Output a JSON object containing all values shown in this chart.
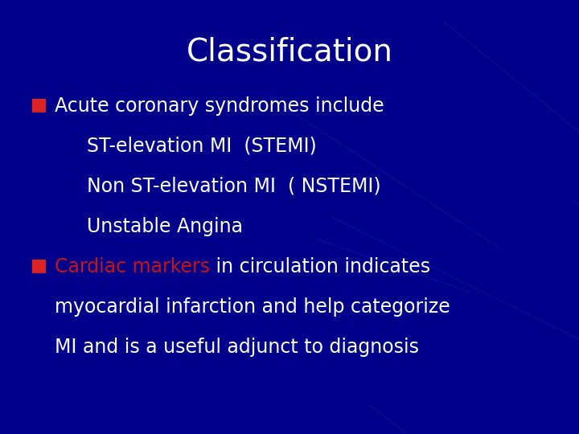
{
  "title": "Classification",
  "title_color": "#ffffff",
  "title_fontsize": 28,
  "background_color": "#00008B",
  "bullet_color": "#dd2222",
  "text_color": "#ffffff",
  "red_text_color": "#cc1111",
  "main_fontsize": 17,
  "sub_fontsize": 17,
  "bullet1_text": "Acute coronary syndromes include",
  "sub1": "ST-elevation MI  (STEMI)",
  "sub2": "Non ST-elevation MI  ( NSTEMI)",
  "sub3": "Unstable Angina",
  "bullet2_part1": "Cardiac markers",
  "bullet2_part2": " in circulation indicates",
  "bullet2_line2": "myocardial infarction and help categorize",
  "bullet2_line3": "MI and is a useful adjunct to diagnosis",
  "figwidth": 7.2,
  "figheight": 5.4,
  "dpi": 100
}
